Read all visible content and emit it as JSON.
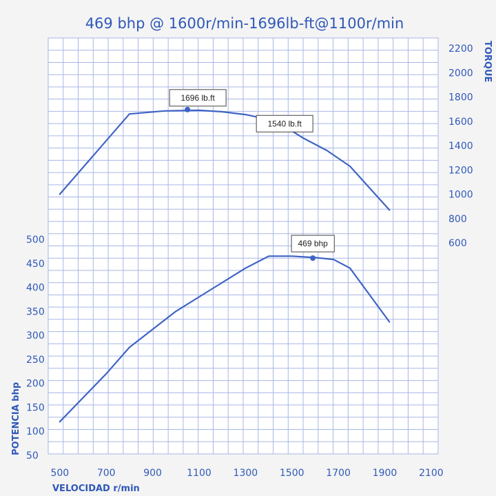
{
  "chart_data": {
    "type": "line",
    "title": "469 bhp @ 1600r/min-1696lb-ft@1100r/min",
    "xlabel": "VELOCIDAD r/min",
    "ylabel_left": "POTENCIA  bhp",
    "ylabel_right": "TORQUE",
    "x_ticks": [
      500,
      700,
      900,
      1100,
      1300,
      1500,
      1700,
      1900,
      2100
    ],
    "xlim": [
      450,
      2130
    ],
    "y_left_ticks": [
      50,
      100,
      150,
      200,
      250,
      300,
      350,
      400,
      450,
      500
    ],
    "ylim_left": [
      50,
      500
    ],
    "y_right_ticks": [
      600,
      800,
      1000,
      1200,
      1400,
      1600,
      1800,
      2000,
      2200
    ],
    "ylim_right": [
      600,
      2200
    ],
    "grid": true,
    "series": [
      {
        "axis": "right",
        "x": [
          500,
          650,
          800,
          950,
          1100,
          1200,
          1300,
          1350,
          1450,
          1550,
          1650,
          1750,
          1920
        ],
        "y": [
          1000,
          1330,
          1660,
          1685,
          1690,
          1678,
          1655,
          1635,
          1580,
          1460,
          1360,
          1230,
          870
        ]
      },
      {
        "axis": "left",
        "x": [
          500,
          700,
          800,
          1000,
          1150,
          1300,
          1400,
          1500,
          1600,
          1680,
          1750,
          1920
        ],
        "y": [
          120,
          220,
          275,
          350,
          395,
          440,
          465,
          465,
          462,
          458,
          440,
          328
        ]
      }
    ],
    "annotations": [
      {
        "label": "1696 lb.ft",
        "x": 1050,
        "y": 1696,
        "axis": "right"
      },
      {
        "label": "1540 lb.ft",
        "x": 1430,
        "y": 1597,
        "axis": "right"
      },
      {
        "label": "469 bhp",
        "x": 1590,
        "y": 461,
        "axis": "left"
      }
    ],
    "colors": {
      "line": "#3f63c4",
      "grid": "#a8b6e6",
      "text": "#2f58b8",
      "background": "#f4f4f4"
    }
  }
}
